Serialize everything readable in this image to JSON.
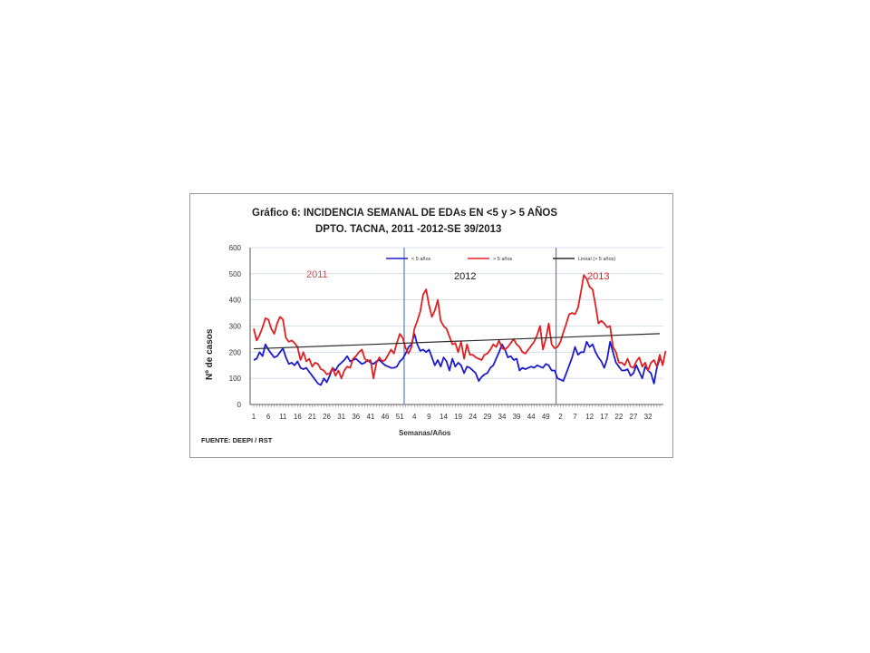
{
  "chart_data": {
    "type": "line",
    "title_line1": "Gráfico 6:  INCIDENCIA SEMANAL DE EDAs EN <5 y > 5 AÑOS",
    "title_line2": "DPTO. TACNA, 2011 -2012-SE 39/2013",
    "ylabel": "Nº de casos",
    "xlabel": "Semanas/Años",
    "source": "FUENTE: DEEPI / RST",
    "ylim": [
      0,
      600
    ],
    "yticks": [
      0,
      100,
      200,
      300,
      400,
      500,
      600
    ],
    "grid": true,
    "legend_position": "top",
    "xtick_labels": [
      "1",
      "6",
      "11",
      "16",
      "21",
      "26",
      "31",
      "36",
      "41",
      "46",
      "51",
      "4",
      "9",
      "14",
      "19",
      "24",
      "29",
      "34",
      "39",
      "44",
      "49",
      "2",
      "7",
      "12",
      "17",
      "22",
      "27",
      "32"
    ],
    "year_labels": [
      {
        "text": "2011",
        "color": "#c0504d"
      },
      {
        "text": "2012",
        "color": "#1f1f1f"
      },
      {
        "text": "2013",
        "color": "#e02020"
      }
    ],
    "series": [
      {
        "name": "< 5 años",
        "color": "#1c1ccc",
        "values": [
          170,
          175,
          200,
          185,
          230,
          210,
          195,
          180,
          185,
          200,
          215,
          180,
          155,
          160,
          150,
          165,
          140,
          135,
          140,
          125,
          110,
          95,
          80,
          75,
          100,
          85,
          110,
          140,
          130,
          150,
          160,
          170,
          185,
          165,
          170,
          175,
          165,
          155,
          160,
          170,
          160,
          155,
          165,
          170,
          160,
          150,
          145,
          140,
          140,
          145,
          165,
          175,
          195,
          220,
          230,
          270,
          230,
          205,
          210,
          200,
          210,
          180,
          150,
          170,
          145,
          180,
          165,
          130,
          175,
          145,
          160,
          150,
          120,
          145,
          140,
          130,
          120,
          90,
          105,
          115,
          120,
          140,
          150,
          175,
          200,
          230,
          210,
          180,
          185,
          170,
          175,
          130,
          140,
          135,
          140,
          145,
          140,
          150,
          145,
          140,
          155,
          150,
          130,
          130,
          100,
          95,
          90,
          120,
          150,
          180,
          220,
          190,
          200,
          200,
          240,
          220,
          230,
          200,
          180,
          165,
          140,
          175,
          240,
          200,
          160,
          145,
          130,
          130,
          135,
          110,
          120,
          150,
          125,
          100,
          145,
          130,
          120,
          80,
          140,
          175
        ]
      },
      {
        "name": "> 5 años",
        "color": "#e02020",
        "values": [
          290,
          245,
          265,
          295,
          330,
          325,
          290,
          270,
          310,
          335,
          325,
          255,
          240,
          245,
          235,
          220,
          170,
          200,
          165,
          175,
          145,
          160,
          155,
          135,
          130,
          115,
          120,
          140,
          110,
          130,
          100,
          130,
          145,
          140,
          175,
          185,
          200,
          210,
          175,
          165,
          170,
          100,
          160,
          180,
          165,
          170,
          190,
          210,
          195,
          235,
          270,
          255,
          215,
          195,
          220,
          290,
          320,
          355,
          420,
          440,
          380,
          335,
          360,
          400,
          320,
          300,
          290,
          260,
          230,
          235,
          200,
          240,
          175,
          230,
          190,
          190,
          180,
          175,
          170,
          190,
          195,
          210,
          230,
          220,
          245,
          215,
          210,
          220,
          235,
          250,
          230,
          220,
          200,
          195,
          210,
          225,
          240,
          265,
          300,
          210,
          250,
          310,
          230,
          215,
          220,
          240,
          275,
          310,
          345,
          350,
          345,
          370,
          430,
          495,
          480,
          450,
          440,
          380,
          310,
          320,
          310,
          295,
          300,
          220,
          200,
          160,
          160,
          150,
          175,
          145,
          140,
          165,
          180,
          145,
          160,
          130,
          160,
          170,
          145,
          190,
          150,
          205
        ]
      },
      {
        "name": "Lineal (> 5 años)",
        "color": "#2a2a2a",
        "values": [
          213,
          271
        ]
      }
    ],
    "year_boundaries_after_week": [
      52,
      104
    ]
  }
}
